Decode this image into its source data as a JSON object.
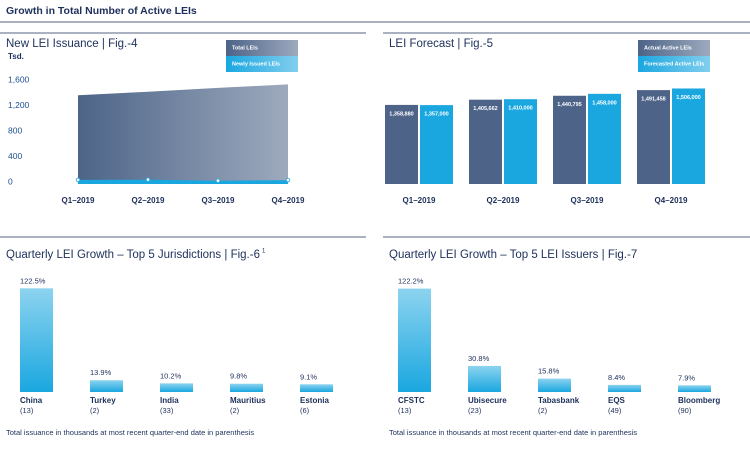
{
  "title": "Growth in Total Number of Active LEIs",
  "chart_data": [
    {
      "type": "area",
      "title": "New LEI Issuance | Fig.-4",
      "ylabel": "Tsd.",
      "categories": [
        "Q1–2019",
        "Q2–2019",
        "Q3–2019",
        "Q4–2019"
      ],
      "series": [
        {
          "name": "Total LEIs",
          "color": "#4d6488",
          "values": [
            1395,
            1450,
            1510,
            1565
          ]
        },
        {
          "name": "Newly Issued LEIs",
          "color": "#1aa7e0",
          "values": [
            65,
            68,
            52,
            60
          ]
        }
      ],
      "ylim": [
        0,
        1650
      ],
      "yticks": [
        0,
        400,
        800,
        {
          "value": 1200,
          "label": "1,200"
        },
        {
          "value": 1600,
          "label": "1,600"
        }
      ]
    },
    {
      "type": "bar",
      "title": "LEI Forecast | Fig.-5",
      "categories": [
        "Q1–2019",
        "Q2–2019",
        "Q3–2019",
        "Q4–2019"
      ],
      "series": [
        {
          "name": "Actual Active LEIs",
          "color": "#4d6488",
          "values": [
            1358880,
            1405662,
            1440795,
            1491458
          ],
          "value_labels": [
            "1,358,880",
            "1,405,662",
            "1,440,795",
            "1,491,458"
          ]
        },
        {
          "name": "Forecasted Active LEIs",
          "color": "#1aa7e0",
          "values": [
            1357000,
            1410000,
            1458000,
            1506000
          ],
          "value_labels": [
            "1,357,000",
            "1,410,000",
            "1,458,000",
            "1,506,000"
          ]
        }
      ],
      "ylim": [
        650000,
        1600000
      ]
    },
    {
      "type": "bar",
      "title": "Quarterly LEI Growth – Top 5 Jurisdictions | Fig.-6",
      "title_sup": "1",
      "categories": [
        "China",
        "Turkey",
        "India",
        "Mauritius",
        "Estonia"
      ],
      "sublabels": [
        "(13)",
        "(2)",
        "(33)",
        "(2)",
        "(6)"
      ],
      "values": [
        122.5,
        13.9,
        10.2,
        9.8,
        9.1
      ],
      "value_labels": [
        "122.5%",
        "13.9%",
        "10.2%",
        "9.8%",
        "9.1%"
      ],
      "color": "#1aa7e0",
      "ylim": [
        0,
        130
      ],
      "note": "Total issuance in thousands at most recent quarter-end date in parenthesis"
    },
    {
      "type": "bar",
      "title": "Quarterly LEI Growth – Top 5 LEI Issuers | Fig.-7",
      "categories": [
        "CFSTC",
        "Ubisecure",
        "Tabasbank",
        "EQS",
        "Bloomberg"
      ],
      "sublabels": [
        "(13)",
        "(23)",
        "(2)",
        "(49)",
        "(90)"
      ],
      "values": [
        122.2,
        30.8,
        15.8,
        8.4,
        7.9
      ],
      "value_labels": [
        "122.2%",
        "30.8%",
        "15.8%",
        "8.4%",
        "7.9%"
      ],
      "color": "#1aa7e0",
      "ylim": [
        0,
        130
      ],
      "note": "Total issuance in thousands at most recent quarter-end date in parenthesis"
    }
  ]
}
